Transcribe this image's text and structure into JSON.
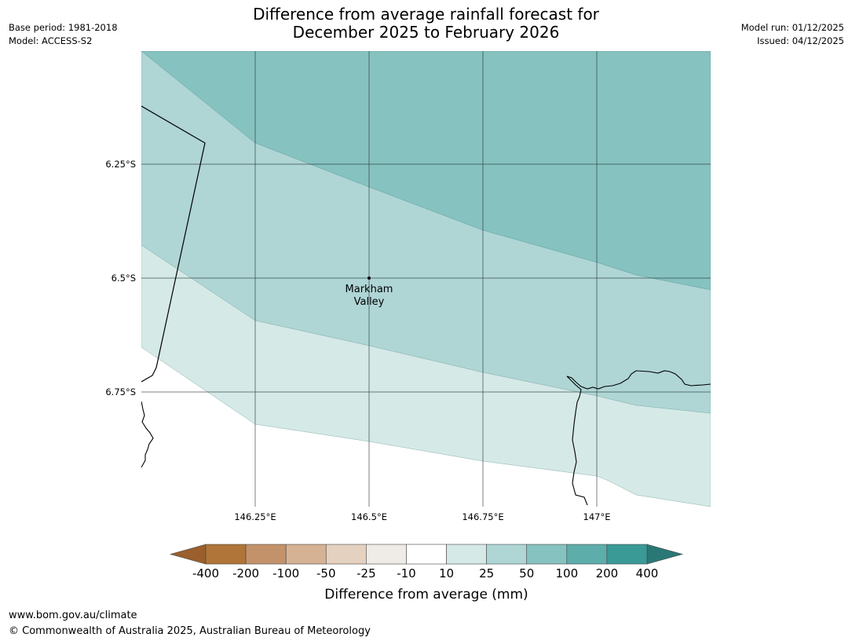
{
  "header": {
    "title_line1": "Difference from average rainfall forecast for",
    "title_line2": "December 2025 to February 2026",
    "base_period": "Base period: 1981-2018",
    "model": "Model: ACCESS-S2",
    "model_run": "Model run: 01/12/2025",
    "issued": "Issued: 04/12/2025"
  },
  "map": {
    "lat_labels": [
      "6.25°S",
      "6.5°S",
      "6.75°S"
    ],
    "lon_labels": [
      "146.25°E",
      "146.5°E",
      "146.75°E",
      "147°E"
    ],
    "place": {
      "name_line1": "Markham",
      "name_line2": "Valley"
    }
  },
  "colorbar": {
    "title": "Difference from average (mm)",
    "ticks": [
      "-400",
      "-200",
      "-100",
      "-50",
      "-25",
      "-10",
      "10",
      "25",
      "50",
      "100",
      "200",
      "400"
    ],
    "colors": [
      "#9a5f2c",
      "#b07538",
      "#c4926a",
      "#d5b294",
      "#e5d1bf",
      "#efebe6",
      "#ffffff",
      "#d5e9e7",
      "#afd5d5",
      "#86c2c0",
      "#5dadab",
      "#3a9a96",
      "#2a7876"
    ]
  },
  "footer": {
    "url": "www.bom.gov.au/climate",
    "copyright": "© Commonwealth of Australia 2025, Australian Bureau of Meteorology"
  }
}
